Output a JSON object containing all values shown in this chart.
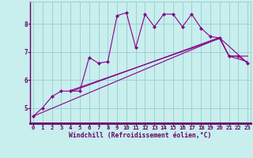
{
  "xlabel": "Windchill (Refroidissement éolien,°C)",
  "bg_color": "#c8eeee",
  "grid_color": "#99cccc",
  "line_color": "#880088",
  "border_color": "#660066",
  "x": [
    0,
    1,
    2,
    3,
    4,
    5,
    6,
    7,
    8,
    9,
    10,
    11,
    12,
    13,
    14,
    15,
    16,
    17,
    18,
    19,
    20,
    21,
    22,
    23
  ],
  "y_obs": [
    4.7,
    5.0,
    5.4,
    5.6,
    5.6,
    5.6,
    6.8,
    6.6,
    6.65,
    8.3,
    8.4,
    7.15,
    8.35,
    7.9,
    8.35,
    8.35,
    7.9,
    8.35,
    7.85,
    7.55,
    7.5,
    6.85,
    6.85,
    6.6
  ],
  "trend1_x": [
    0,
    20,
    23
  ],
  "trend1_y": [
    4.7,
    7.5,
    6.6
  ],
  "trend2_x": [
    4,
    20,
    21,
    23
  ],
  "trend2_y": [
    5.58,
    7.52,
    6.85,
    6.85
  ],
  "trend3_x": [
    4,
    20,
    21,
    23
  ],
  "trend3_y": [
    5.62,
    7.48,
    6.85,
    6.65
  ],
  "ylim": [
    4.45,
    8.8
  ],
  "xlim": [
    -0.3,
    23.3
  ],
  "yticks": [
    5,
    6,
    7,
    8
  ],
  "xticks": [
    0,
    1,
    2,
    3,
    4,
    5,
    6,
    7,
    8,
    9,
    10,
    11,
    12,
    13,
    14,
    15,
    16,
    17,
    18,
    19,
    20,
    21,
    22,
    23
  ],
  "tick_fontsize": 5.2,
  "xlabel_fontsize": 5.8
}
